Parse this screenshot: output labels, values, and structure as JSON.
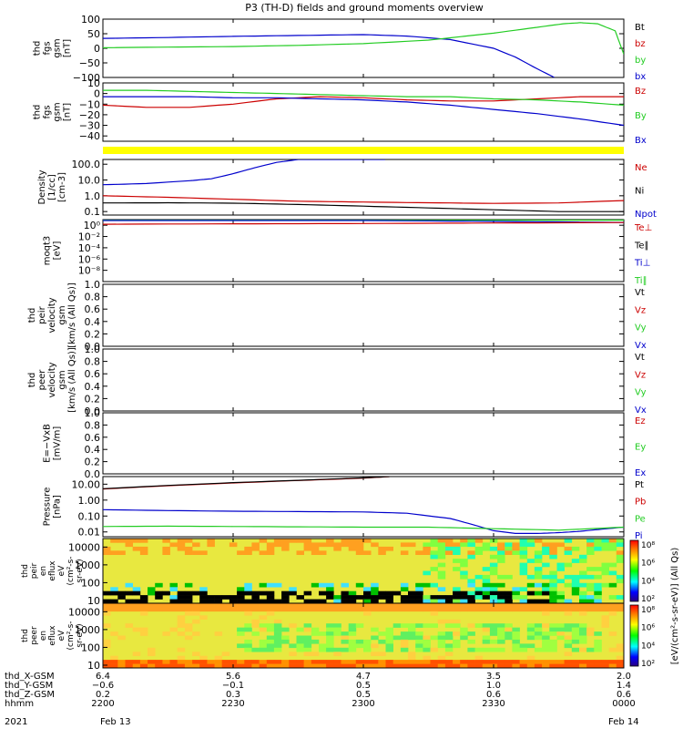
{
  "title": "P3 (TH-D) fields and ground moments overview",
  "colors": {
    "black": "#000000",
    "red": "#cc0000",
    "green": "#22cc22",
    "blue": "#0000cc",
    "yellow": "#ffff00"
  },
  "chart_data": {
    "type": "line",
    "x_unit": "minutes since 2200 UT, 2021 Feb 13",
    "x_range": [
      0,
      120
    ],
    "x_ticks": [
      0,
      30,
      60,
      90,
      120
    ],
    "panels": [
      {
        "id": "fgs-gsm-total",
        "ylabel": [
          "thd",
          "fgs",
          "gsm",
          "[nT]"
        ],
        "ylim": [
          -100,
          100
        ],
        "yticks": [
          -100,
          -50,
          0,
          50,
          100
        ],
        "ytick_labels": [
          "−100",
          "−50",
          "0",
          "50",
          "100"
        ],
        "legend": [
          {
            "text": "Bt",
            "color": "#000000"
          },
          {
            "text": "bz",
            "color": "#cc0000"
          },
          {
            "text": "by",
            "color": "#22cc22"
          },
          {
            "text": "bx",
            "color": "#0000cc"
          }
        ],
        "series": [
          {
            "name": "bx",
            "color": "#0000cc",
            "x": [
              0,
              15,
              30,
              45,
              60,
              70,
              80,
              90,
              95,
              100,
              104
            ],
            "y": [
              34,
              37,
              41,
              44,
              47,
              42,
              30,
              0,
              -30,
              -70,
              -100
            ]
          },
          {
            "name": "by",
            "color": "#22cc22",
            "x": [
              0,
              15,
              30,
              45,
              60,
              75,
              90,
              100,
              106,
              110,
              114,
              118,
              120
            ],
            "y": [
              2,
              4,
              6,
              10,
              16,
              28,
              52,
              72,
              84,
              88,
              84,
              60,
              -20
            ]
          }
        ]
      },
      {
        "id": "fgs-gsm-detail",
        "ylabel": [
          "thd",
          "fgs",
          "gsm",
          "[nT]"
        ],
        "ylim": [
          -45,
          10
        ],
        "yticks": [
          -40,
          -30,
          -20,
          -10,
          0,
          10
        ],
        "ytick_labels": [
          "−40",
          "−30",
          "−20",
          "−10",
          "0",
          "10"
        ],
        "legend": [
          {
            "text": "Bz",
            "color": "#cc0000"
          },
          {
            "text": "By",
            "color": "#22cc22"
          },
          {
            "text": "Bx",
            "color": "#0000cc"
          }
        ],
        "series": [
          {
            "name": "Bz",
            "color": "#cc0000",
            "x": [
              0,
              10,
              20,
              30,
              40,
              50,
              60,
              70,
              80,
              90,
              100,
              110,
              120
            ],
            "y": [
              -11,
              -13,
              -13,
              -10,
              -5,
              -3,
              -4,
              -6,
              -7,
              -7,
              -5,
              -3,
              -3
            ]
          },
          {
            "name": "By",
            "color": "#22cc22",
            "x": [
              0,
              10,
              20,
              30,
              40,
              50,
              60,
              70,
              80,
              90,
              100,
              110,
              120
            ],
            "y": [
              3,
              3,
              2,
              1,
              0,
              -1,
              -2,
              -3,
              -3,
              -5,
              -6,
              -8,
              -11
            ]
          },
          {
            "name": "Bx",
            "color": "#0000cc",
            "x": [
              0,
              10,
              20,
              30,
              40,
              50,
              60,
              70,
              80,
              90,
              100,
              110,
              120
            ],
            "y": [
              -3,
              -3,
              -3,
              -4,
              -4,
              -5,
              -6,
              -8,
              -11,
              -15,
              -19,
              -24,
              -30
            ]
          }
        ]
      },
      {
        "id": "density",
        "ylabel": [
          "Density",
          "[1/cc]",
          "[cm-3]"
        ],
        "yscale": "log",
        "ylim": [
          0.06,
          200
        ],
        "yticks": [
          0.1,
          1.0,
          10.0,
          100.0
        ],
        "ytick_labels": [
          "0.1",
          "1.0",
          "10.0",
          "100.0"
        ],
        "legend": [
          {
            "text": "Ne",
            "color": "#cc0000"
          },
          {
            "text": "Ni",
            "color": "#000000"
          },
          {
            "text": "Npot",
            "color": "#0000cc"
          }
        ],
        "series": [
          {
            "name": "Ne",
            "color": "#cc0000",
            "x": [
              0,
              15,
              30,
              45,
              60,
              75,
              90,
              105,
              120
            ],
            "y": [
              1.0,
              0.8,
              0.6,
              0.45,
              0.4,
              0.36,
              0.33,
              0.35,
              0.5
            ]
          },
          {
            "name": "Ni",
            "color": "#000000",
            "x": [
              0,
              15,
              30,
              45,
              60,
              75,
              90,
              105,
              120
            ],
            "y": [
              0.35,
              0.36,
              0.34,
              0.28,
              0.22,
              0.17,
              0.13,
              0.1,
              0.1
            ]
          },
          {
            "name": "Npot",
            "color": "#0000cc",
            "x": [
              0,
              10,
              20,
              25,
              30,
              35,
              40,
              45,
              50,
              55,
              60,
              65
            ],
            "y": [
              5,
              6,
              9,
              12,
              25,
              60,
              130,
              200,
              200,
              200,
              200,
              200
            ]
          }
        ]
      },
      {
        "id": "temperature",
        "ylabel": [
          "moqt3",
          "[eV]"
        ],
        "yscale": "log",
        "ylim": [
          1e-10,
          10
        ],
        "yticks": [
          1,
          0.01,
          0.0001,
          1e-06,
          1e-08
        ],
        "ytick_labels": [
          "10⁰",
          "10⁻²",
          "10⁻⁴",
          "10⁻⁶",
          "10⁻⁸"
        ],
        "legend": [
          {
            "text": "Te⊥",
            "color": "#cc0000"
          },
          {
            "text": "Te∥",
            "color": "#000000"
          },
          {
            "text": "Ti⊥",
            "color": "#0000cc"
          },
          {
            "text": "Ti∥",
            "color": "#22cc22"
          }
        ],
        "series": [
          {
            "name": "Ti∥",
            "color": "#22cc22",
            "x": [
              0,
              30,
              60,
              90,
              120
            ],
            "y": [
              8,
              8,
              8,
              8,
              8
            ]
          },
          {
            "name": "Ti⊥",
            "color": "#0000cc",
            "x": [
              0,
              30,
              60,
              90,
              120
            ],
            "y": [
              7,
              7,
              7,
              5,
              3
            ]
          },
          {
            "name": "Te⊥",
            "color": "#cc0000",
            "x": [
              0,
              30,
              60,
              90,
              120
            ],
            "y": [
              1.5,
              1.8,
              2,
              2.5,
              3
            ]
          }
        ]
      },
      {
        "id": "peir-velocity",
        "ylabel": [
          "thd",
          "peir",
          "velocity",
          "gsm",
          "[km/s (All Qs)]"
        ],
        "ylim": [
          0,
          1
        ],
        "yticks": [
          0,
          0.2,
          0.4,
          0.6,
          0.8,
          1.0
        ],
        "ytick_labels": [
          "0.0",
          "0.2",
          "0.4",
          "0.6",
          "0.8",
          "1.0"
        ],
        "legend": [
          {
            "text": "Vt",
            "color": "#000000"
          },
          {
            "text": "Vz",
            "color": "#cc0000"
          },
          {
            "text": "Vy",
            "color": "#22cc22"
          },
          {
            "text": "Vx",
            "color": "#0000cc"
          }
        ],
        "series": []
      },
      {
        "id": "peer-velocity",
        "ylabel": [
          "thd",
          "peer",
          "velocity",
          "gsm",
          "[km/s (All Qs)]"
        ],
        "ylim": [
          0,
          1
        ],
        "yticks": [
          0,
          0.2,
          0.4,
          0.6,
          0.8,
          1.0
        ],
        "ytick_labels": [
          "0.0",
          "0.2",
          "0.4",
          "0.6",
          "0.8",
          "1.0"
        ],
        "legend": [
          {
            "text": "Vt",
            "color": "#000000"
          },
          {
            "text": "Vz",
            "color": "#cc0000"
          },
          {
            "text": "Vy",
            "color": "#22cc22"
          },
          {
            "text": "Vx",
            "color": "#0000cc"
          }
        ],
        "series": []
      },
      {
        "id": "efield",
        "ylabel": [
          "E=−VxB",
          "[mV/m]"
        ],
        "ylim": [
          0,
          1
        ],
        "yticks": [
          0,
          0.2,
          0.4,
          0.6,
          0.8,
          1.0
        ],
        "ytick_labels": [
          "0.0",
          "0.2",
          "0.4",
          "0.6",
          "0.8",
          "1.0"
        ],
        "legend": [
          {
            "text": "Ez",
            "color": "#cc0000"
          },
          {
            "text": "Ey",
            "color": "#22cc22"
          },
          {
            "text": "Ex",
            "color": "#0000cc"
          }
        ],
        "series": []
      },
      {
        "id": "pressure",
        "ylabel": [
          "Pressure",
          "[nPa]"
        ],
        "yscale": "log",
        "ylim": [
          0.005,
          30
        ],
        "yticks": [
          0.01,
          0.1,
          1.0,
          10.0
        ],
        "ytick_labels": [
          "0.01",
          "0.10",
          "1.00",
          "10.00"
        ],
        "legend": [
          {
            "text": "Pt",
            "color": "#000000"
          },
          {
            "text": "Pb",
            "color": "#cc0000"
          },
          {
            "text": "Pe",
            "color": "#22cc22"
          },
          {
            "text": "Pi",
            "color": "#0000cc"
          }
        ],
        "series": [
          {
            "name": "Pb",
            "color": "#cc0000",
            "x": [
              0,
              15,
              30,
              45,
              60,
              66
            ],
            "y": [
              5,
              8,
              12,
              17,
              24,
              30
            ]
          },
          {
            "name": "Pt",
            "color": "#000000",
            "x": [
              0,
              15,
              30,
              45,
              60,
              66
            ],
            "y": [
              5.2,
              8.3,
              12.5,
              17.5,
              25,
              30
            ]
          },
          {
            "name": "Pi",
            "color": "#0000cc",
            "x": [
              0,
              15,
              30,
              45,
              60,
              70,
              80,
              85,
              90,
              95,
              100,
              105,
              110,
              115,
              120
            ],
            "y": [
              0.25,
              0.22,
              0.2,
              0.19,
              0.18,
              0.15,
              0.07,
              0.03,
              0.012,
              0.008,
              0.008,
              0.009,
              0.011,
              0.015,
              0.02
            ]
          },
          {
            "name": "Pe",
            "color": "#22cc22",
            "x": [
              0,
              15,
              30,
              45,
              60,
              75,
              90,
              105,
              120
            ],
            "y": [
              0.022,
              0.023,
              0.022,
              0.021,
              0.02,
              0.02,
              0.016,
              0.013,
              0.02
            ]
          }
        ]
      }
    ],
    "spectrograms": [
      {
        "id": "peir-en-eflux",
        "ylabel": [
          "thd",
          "peir",
          "en",
          "eflux",
          "eV",
          "(cm²-s-",
          "sr-eV)"
        ],
        "yscale": "log",
        "ylim": [
          7,
          30000
        ],
        "yticks": [
          10,
          100,
          1000,
          10000
        ],
        "ytick_labels": [
          "10",
          "100",
          "1000",
          "10000"
        ]
      },
      {
        "id": "peer-en-eflux",
        "ylabel": [
          "thd",
          "peer",
          "en",
          "eflux",
          "eV",
          "(cm²-s-",
          "sr-eV)"
        ],
        "yscale": "log",
        "ylim": [
          7,
          30000
        ],
        "yticks": [
          10,
          100,
          1000,
          10000
        ],
        "ytick_labels": [
          "10",
          "100",
          "1000",
          "10000"
        ]
      }
    ],
    "colorbar": {
      "label": "[eV/(cm²-s-sr-eV)] (All Qs)",
      "upper_ticks": [
        "10⁸",
        "10⁶",
        "10⁴",
        "10²"
      ],
      "lower_ticks": [
        "10⁸",
        "10⁶",
        "10⁴",
        "10²"
      ]
    },
    "xaxis_rows": [
      {
        "label": "thd_X-GSM",
        "values": [
          "6.4",
          "5.6",
          "4.7",
          "3.5",
          "2.0"
        ]
      },
      {
        "label": "thd_Y-GSM",
        "values": [
          "−0.6",
          "−0.1",
          "0.5",
          "1.0",
          "1.4"
        ]
      },
      {
        "label": "thd_Z-GSM",
        "values": [
          "0.2",
          "0.3",
          "0.5",
          "0.6",
          "0.6"
        ]
      },
      {
        "label": "hhmm",
        "values": [
          "2200",
          "2230",
          "2300",
          "2330",
          "0000"
        ]
      }
    ],
    "x_year": "2021",
    "x_date_start": "Feb 13",
    "x_date_end": "Feb 14"
  }
}
